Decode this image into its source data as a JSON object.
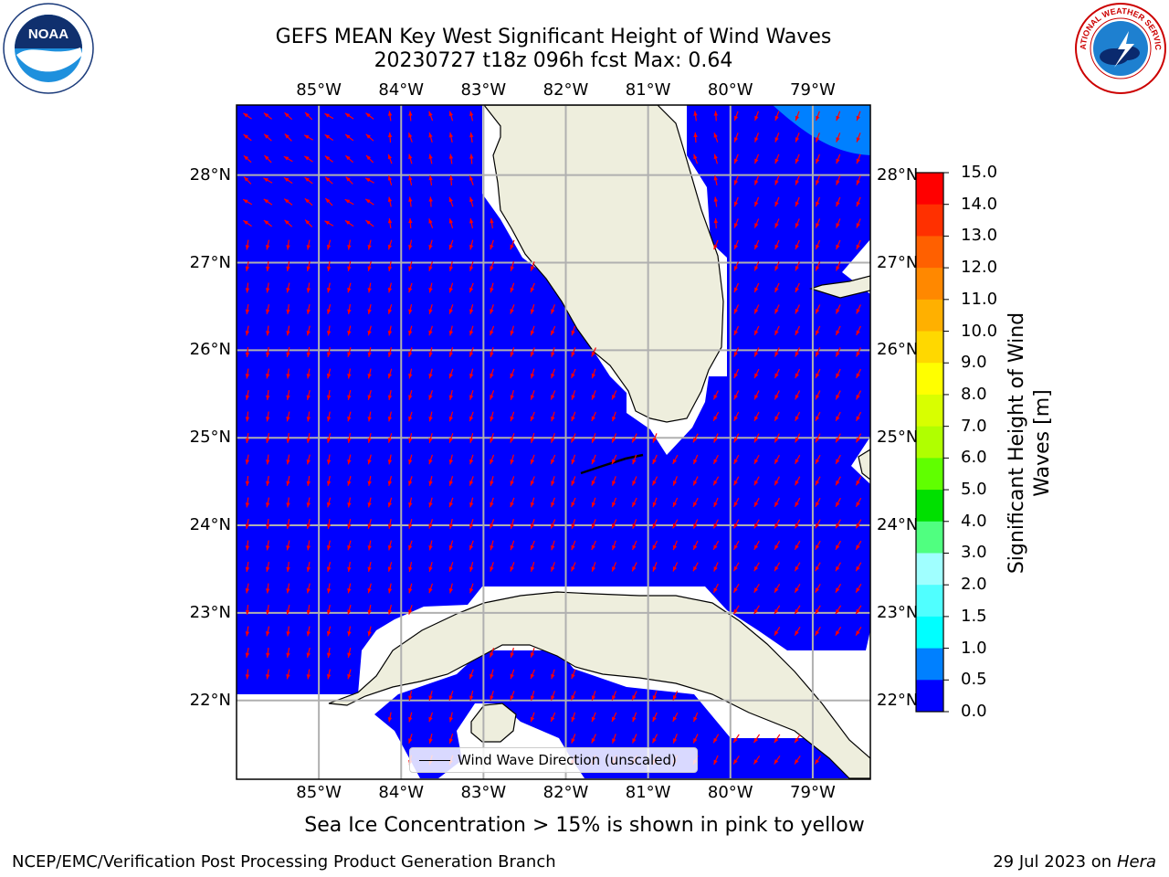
{
  "title": {
    "line1": "GEFS MEAN Key West Significant Height of Wind Waves",
    "line2": "20230727 t18z 096h fcst   Max: 0.64"
  },
  "map": {
    "lon_labels": [
      "85°W",
      "84°W",
      "83°W",
      "82°W",
      "81°W",
      "80°W",
      "79°W"
    ],
    "lat_labels": [
      "28°N",
      "27°N",
      "26°N",
      "25°N",
      "24°N",
      "23°N",
      "22°N"
    ],
    "lon_values": [
      -85,
      -84,
      -83,
      -82,
      -81,
      -80,
      -79
    ],
    "lat_values": [
      28,
      27,
      26,
      25,
      24,
      23,
      22
    ],
    "lon_range": [
      -86.0,
      -78.3
    ],
    "lat_range": [
      21.1,
      28.8
    ],
    "colors": {
      "ocean_low": "#0000ff",
      "ocean_mid": "#0080ff",
      "land": "#eeeedd",
      "arrow": "#ff0000",
      "grid": "#b0b0b0"
    }
  },
  "legend": {
    "label": "Wind Wave Direction (unscaled)"
  },
  "colorbar": {
    "title": "Significant Height of Wind Waves [m]",
    "ticks": [
      "15.0",
      "14.0",
      "13.0",
      "12.0",
      "11.0",
      "10.0",
      "9.0",
      "8.0",
      "7.0",
      "6.0",
      "5.0",
      "4.0",
      "3.0",
      "2.0",
      "1.5",
      "1.0",
      "0.5",
      "0.0"
    ],
    "colors": [
      "#ff0000",
      "#ff3000",
      "#ff6000",
      "#ff8800",
      "#ffb000",
      "#ffd800",
      "#ffff00",
      "#d8ff00",
      "#b0ff00",
      "#60ff00",
      "#00e000",
      "#50ff80",
      "#a0ffff",
      "#50ffff",
      "#00ffff",
      "#0080ff",
      "#0000ff"
    ]
  },
  "subtitle": "Sea Ice Concentration > 15% is shown in pink to yellow",
  "footer": {
    "left": "NCEP/EMC/Verification Post Processing Product Generation Branch",
    "right_date": "29 Jul 2023 on",
    "right_host": "Hera"
  },
  "logos": {
    "noaa_text": "NOAA",
    "nws_text": "NATIONAL WEATHER SERVICE"
  }
}
